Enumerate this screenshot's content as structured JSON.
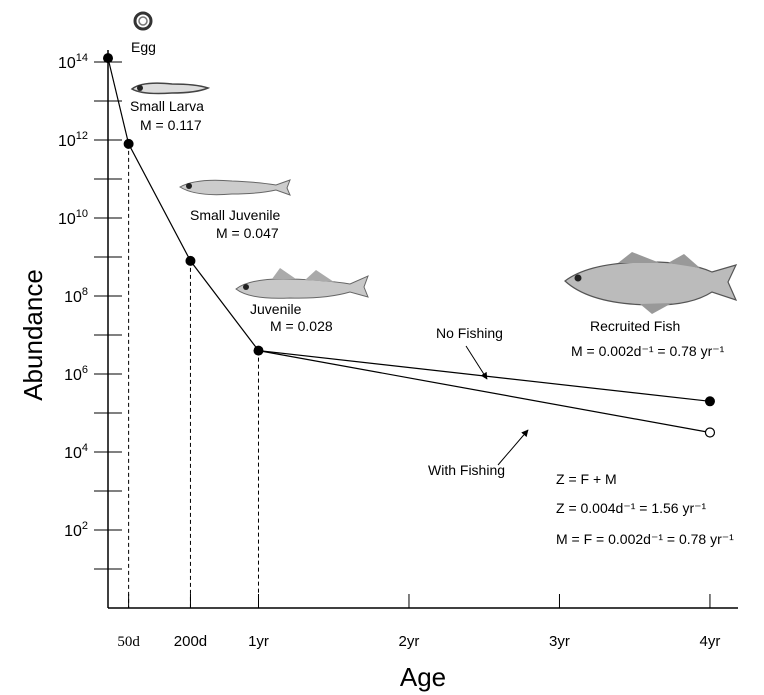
{
  "chart_data": {
    "type": "line",
    "xlabel": "Age",
    "ylabel": "Abundance",
    "x_ticks": [
      {
        "label": "50d",
        "day": 50
      },
      {
        "label": "200d",
        "day": 200
      },
      {
        "label": "1yr",
        "day": 365
      },
      {
        "label": "2yr",
        "day": 730
      },
      {
        "label": "3yr",
        "day": 1095
      },
      {
        "label": "4yr",
        "day": 1460
      }
    ],
    "y_scale": "log",
    "y_tick_labels": [
      {
        "base": "10",
        "exp": "14",
        "log": 14
      },
      {
        "base": "10",
        "exp": "12",
        "log": 12
      },
      {
        "base": "10",
        "exp": "10",
        "log": 10
      },
      {
        "base": "10",
        "exp": "8",
        "log": 8
      },
      {
        "base": "10",
        "exp": "6",
        "log": 6
      },
      {
        "base": "10",
        "exp": "4",
        "log": 4
      },
      {
        "base": "10",
        "exp": "2",
        "log": 2
      }
    ],
    "y_minor_ticks": [
      13,
      11,
      9,
      7,
      5,
      3,
      1
    ],
    "series": [
      {
        "name": "No Fishing",
        "points": [
          {
            "day": 0,
            "log": 14.1
          },
          {
            "day": 50,
            "log": 11.9
          },
          {
            "day": 200,
            "log": 8.9
          },
          {
            "day": 365,
            "log": 6.6
          },
          {
            "day": 1460,
            "log": 5.3
          }
        ]
      },
      {
        "name": "With Fishing",
        "points": [
          {
            "day": 365,
            "log": 6.6
          },
          {
            "day": 1460,
            "log": 4.5
          }
        ]
      }
    ],
    "stages": [
      {
        "name": "Egg",
        "mortality": ""
      },
      {
        "name": "Small Larva",
        "mortality": "M = 0.117"
      },
      {
        "name": "Small Juvenile",
        "mortality": "M = 0.047"
      },
      {
        "name": "Juvenile",
        "mortality": "M = 0.028"
      },
      {
        "name": "Recruited Fish",
        "mortality": "M = 0.002d⁻¹ = 0.78 yr⁻¹"
      }
    ],
    "annotations": {
      "no_fishing": "No Fishing",
      "with_fishing": "With Fishing",
      "z_eq": "Z = F + M",
      "z_val": "Z = 0.004d⁻¹ = 1.56 yr⁻¹",
      "mf_val": "M = F = 0.002d⁻¹ = 0.78 yr⁻¹"
    }
  }
}
